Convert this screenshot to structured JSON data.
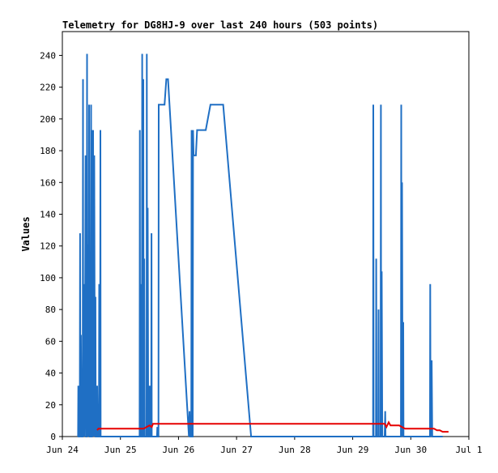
{
  "chart_data": {
    "type": "line",
    "title": "Telemetry for DG8HJ-9 over last 240 hours (503 points)",
    "xlabel": "",
    "ylabel": "Values",
    "x_unit": "days (Jun 24 = 0)",
    "xlim": [
      0,
      7
    ],
    "ylim": [
      0,
      255
    ],
    "yticks": [
      0,
      20,
      40,
      60,
      80,
      100,
      120,
      140,
      160,
      180,
      200,
      220,
      240
    ],
    "xticks": [
      {
        "pos": 0,
        "label": "Jun 24"
      },
      {
        "pos": 1,
        "label": "Jun 25"
      },
      {
        "pos": 2,
        "label": "Jun 26"
      },
      {
        "pos": 3,
        "label": "Jun 27"
      },
      {
        "pos": 4,
        "label": "Jun 28"
      },
      {
        "pos": 5,
        "label": "Jun 29"
      },
      {
        "pos": 6,
        "label": "Jun 30"
      },
      {
        "pos": 7,
        "label": "Jul 1"
      }
    ],
    "grid": false,
    "series": [
      {
        "color": "#1f6fc4",
        "points": [
          [
            0.27,
            0
          ],
          [
            0.275,
            32
          ],
          [
            0.28,
            0
          ],
          [
            0.3,
            0
          ],
          [
            0.305,
            128
          ],
          [
            0.31,
            0
          ],
          [
            0.32,
            64
          ],
          [
            0.33,
            0
          ],
          [
            0.35,
            0
          ],
          [
            0.355,
            225
          ],
          [
            0.36,
            0
          ],
          [
            0.37,
            96
          ],
          [
            0.38,
            0
          ],
          [
            0.39,
            48
          ],
          [
            0.4,
            177
          ],
          [
            0.41,
            0
          ],
          [
            0.42,
            0
          ],
          [
            0.425,
            241
          ],
          [
            0.43,
            0
          ],
          [
            0.44,
            121
          ],
          [
            0.45,
            0
          ],
          [
            0.46,
            209
          ],
          [
            0.47,
            0
          ],
          [
            0.49,
            0
          ],
          [
            0.495,
            209
          ],
          [
            0.5,
            0
          ],
          [
            0.51,
            0
          ],
          [
            0.515,
            193
          ],
          [
            0.52,
            0
          ],
          [
            0.53,
            193
          ],
          [
            0.54,
            0
          ],
          [
            0.55,
            177
          ],
          [
            0.56,
            0
          ],
          [
            0.57,
            88
          ],
          [
            0.575,
            0
          ],
          [
            0.59,
            0
          ],
          [
            0.6,
            32
          ],
          [
            0.61,
            0
          ],
          [
            0.63,
            0
          ],
          [
            0.635,
            96
          ],
          [
            0.64,
            0
          ],
          [
            0.65,
            0
          ],
          [
            0.655,
            193
          ],
          [
            0.66,
            0
          ],
          [
            1.33,
            0
          ],
          [
            1.335,
            193
          ],
          [
            1.34,
            0
          ],
          [
            1.35,
            0
          ],
          [
            1.355,
            96
          ],
          [
            1.36,
            0
          ],
          [
            1.37,
            0
          ],
          [
            1.375,
            241
          ],
          [
            1.38,
            0
          ],
          [
            1.39,
            0
          ],
          [
            1.395,
            225
          ],
          [
            1.4,
            0
          ],
          [
            1.41,
            112
          ],
          [
            1.42,
            0
          ],
          [
            1.45,
            0
          ],
          [
            1.455,
            241
          ],
          [
            1.46,
            0
          ],
          [
            1.47,
            144
          ],
          [
            1.48,
            0
          ],
          [
            1.5,
            0
          ],
          [
            1.505,
            32
          ],
          [
            1.51,
            0
          ],
          [
            1.53,
            0
          ],
          [
            1.535,
            128
          ],
          [
            1.54,
            0
          ],
          [
            1.63,
            0
          ],
          [
            1.635,
            6
          ],
          [
            1.64,
            0
          ],
          [
            1.655,
            0
          ],
          [
            1.66,
            209
          ],
          [
            1.76,
            209
          ],
          [
            1.79,
            225
          ],
          [
            1.82,
            225
          ],
          [
            2.18,
            0
          ],
          [
            2.19,
            16
          ],
          [
            2.2,
            0
          ],
          [
            2.22,
            0
          ],
          [
            2.225,
            193
          ],
          [
            2.23,
            0
          ],
          [
            2.245,
            0
          ],
          [
            2.25,
            193
          ],
          [
            2.26,
            177
          ],
          [
            2.3,
            177
          ],
          [
            2.32,
            193
          ],
          [
            2.47,
            193
          ],
          [
            2.55,
            209
          ],
          [
            2.77,
            209
          ],
          [
            3.25,
            0
          ],
          [
            3.3,
            0
          ],
          [
            5.35,
            0
          ],
          [
            5.355,
            209
          ],
          [
            5.36,
            0
          ],
          [
            5.4,
            0
          ],
          [
            5.405,
            112
          ],
          [
            5.41,
            0
          ],
          [
            5.44,
            0
          ],
          [
            5.445,
            80
          ],
          [
            5.45,
            0
          ],
          [
            5.48,
            0
          ],
          [
            5.485,
            209
          ],
          [
            5.49,
            0
          ],
          [
            5.5,
            104
          ],
          [
            5.51,
            0
          ],
          [
            5.55,
            0
          ],
          [
            5.555,
            8
          ],
          [
            5.56,
            16
          ],
          [
            5.565,
            0
          ],
          [
            5.83,
            0
          ],
          [
            5.835,
            209
          ],
          [
            5.84,
            0
          ],
          [
            5.85,
            160
          ],
          [
            5.86,
            0
          ],
          [
            5.87,
            72
          ],
          [
            5.875,
            0
          ],
          [
            6.33,
            0
          ],
          [
            6.335,
            96
          ],
          [
            6.34,
            0
          ],
          [
            6.36,
            48
          ],
          [
            6.37,
            0
          ],
          [
            6.55,
            0
          ]
        ]
      },
      {
        "color": "#e60000",
        "points": [
          [
            0.6,
            4
          ],
          [
            0.62,
            5
          ],
          [
            0.7,
            5
          ],
          [
            1.3,
            5
          ],
          [
            1.4,
            5
          ],
          [
            1.45,
            6
          ],
          [
            1.5,
            7
          ],
          [
            1.54,
            6
          ],
          [
            1.56,
            8
          ],
          [
            1.62,
            8
          ],
          [
            1.66,
            8
          ],
          [
            2.0,
            8
          ],
          [
            3.0,
            8
          ],
          [
            4.0,
            8
          ],
          [
            5.0,
            8
          ],
          [
            5.35,
            8
          ],
          [
            5.55,
            8
          ],
          [
            5.58,
            6
          ],
          [
            5.62,
            9
          ],
          [
            5.65,
            7
          ],
          [
            5.8,
            7
          ],
          [
            5.85,
            6
          ],
          [
            5.9,
            5
          ],
          [
            6.2,
            5
          ],
          [
            6.4,
            5
          ],
          [
            6.45,
            4
          ],
          [
            6.5,
            4
          ],
          [
            6.55,
            3
          ],
          [
            6.65,
            3
          ]
        ]
      }
    ]
  }
}
